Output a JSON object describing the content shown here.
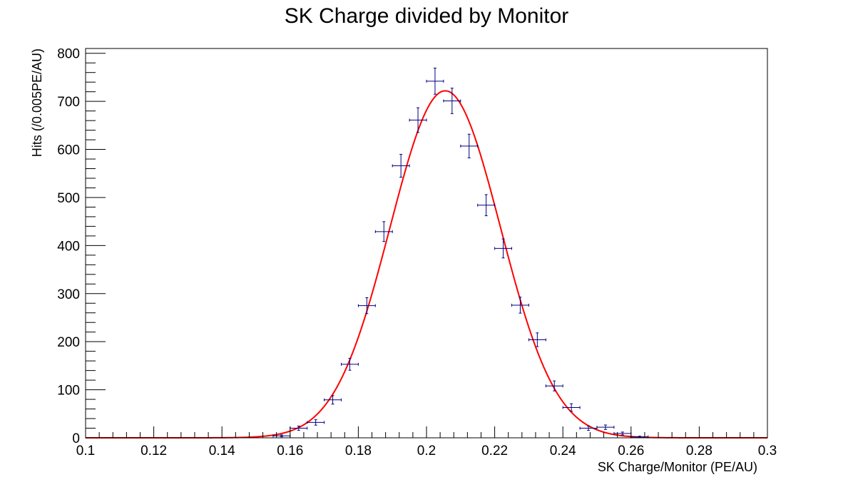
{
  "chart_data": {
    "type": "scatter",
    "title": "SK Charge divided by Monitor",
    "xlabel": "SK Charge/Monitor (PE/AU)",
    "ylabel": "Hits (/0.005PE/AU)",
    "xlim": [
      0.1,
      0.3
    ],
    "ylim": [
      0,
      810
    ],
    "x_ticks": [
      "0.1",
      "0.12",
      "0.14",
      "0.16",
      "0.18",
      "0.2",
      "0.22",
      "0.24",
      "0.26",
      "0.28",
      "0.3"
    ],
    "y_ticks": [
      "0",
      "100",
      "200",
      "300",
      "400",
      "500",
      "600",
      "700",
      "800"
    ],
    "grid": false,
    "legend": "none",
    "bin_width": 0.005,
    "points": [
      {
        "x": 0.1575,
        "y": 4,
        "yerr": 2
      },
      {
        "x": 0.1625,
        "y": 20,
        "yerr": 4.5
      },
      {
        "x": 0.1675,
        "y": 32,
        "yerr": 5.7
      },
      {
        "x": 0.1725,
        "y": 79,
        "yerr": 8.9
      },
      {
        "x": 0.1775,
        "y": 153,
        "yerr": 12.4
      },
      {
        "x": 0.1825,
        "y": 275,
        "yerr": 16.6
      },
      {
        "x": 0.1875,
        "y": 429,
        "yerr": 20.7
      },
      {
        "x": 0.1925,
        "y": 566,
        "yerr": 23.8
      },
      {
        "x": 0.1975,
        "y": 661,
        "yerr": 25.7
      },
      {
        "x": 0.2025,
        "y": 742,
        "yerr": 27.2
      },
      {
        "x": 0.2075,
        "y": 701,
        "yerr": 26.5
      },
      {
        "x": 0.2125,
        "y": 607,
        "yerr": 24.6
      },
      {
        "x": 0.2175,
        "y": 484,
        "yerr": 22.0
      },
      {
        "x": 0.2225,
        "y": 394,
        "yerr": 19.8
      },
      {
        "x": 0.2275,
        "y": 276,
        "yerr": 16.6
      },
      {
        "x": 0.2325,
        "y": 204,
        "yerr": 14.3
      },
      {
        "x": 0.2375,
        "y": 108,
        "yerr": 10.4
      },
      {
        "x": 0.2425,
        "y": 63,
        "yerr": 7.9
      },
      {
        "x": 0.2475,
        "y": 20,
        "yerr": 4.5
      },
      {
        "x": 0.2525,
        "y": 22,
        "yerr": 4.7
      },
      {
        "x": 0.2575,
        "y": 9,
        "yerr": 3
      },
      {
        "x": 0.2625,
        "y": 2,
        "yerr": 1.4
      }
    ],
    "fit": {
      "type": "gaussian",
      "amplitude": 722,
      "mean": 0.2055,
      "sigma": 0.0162,
      "color": "#ff0000"
    },
    "point_color": "#000080"
  }
}
